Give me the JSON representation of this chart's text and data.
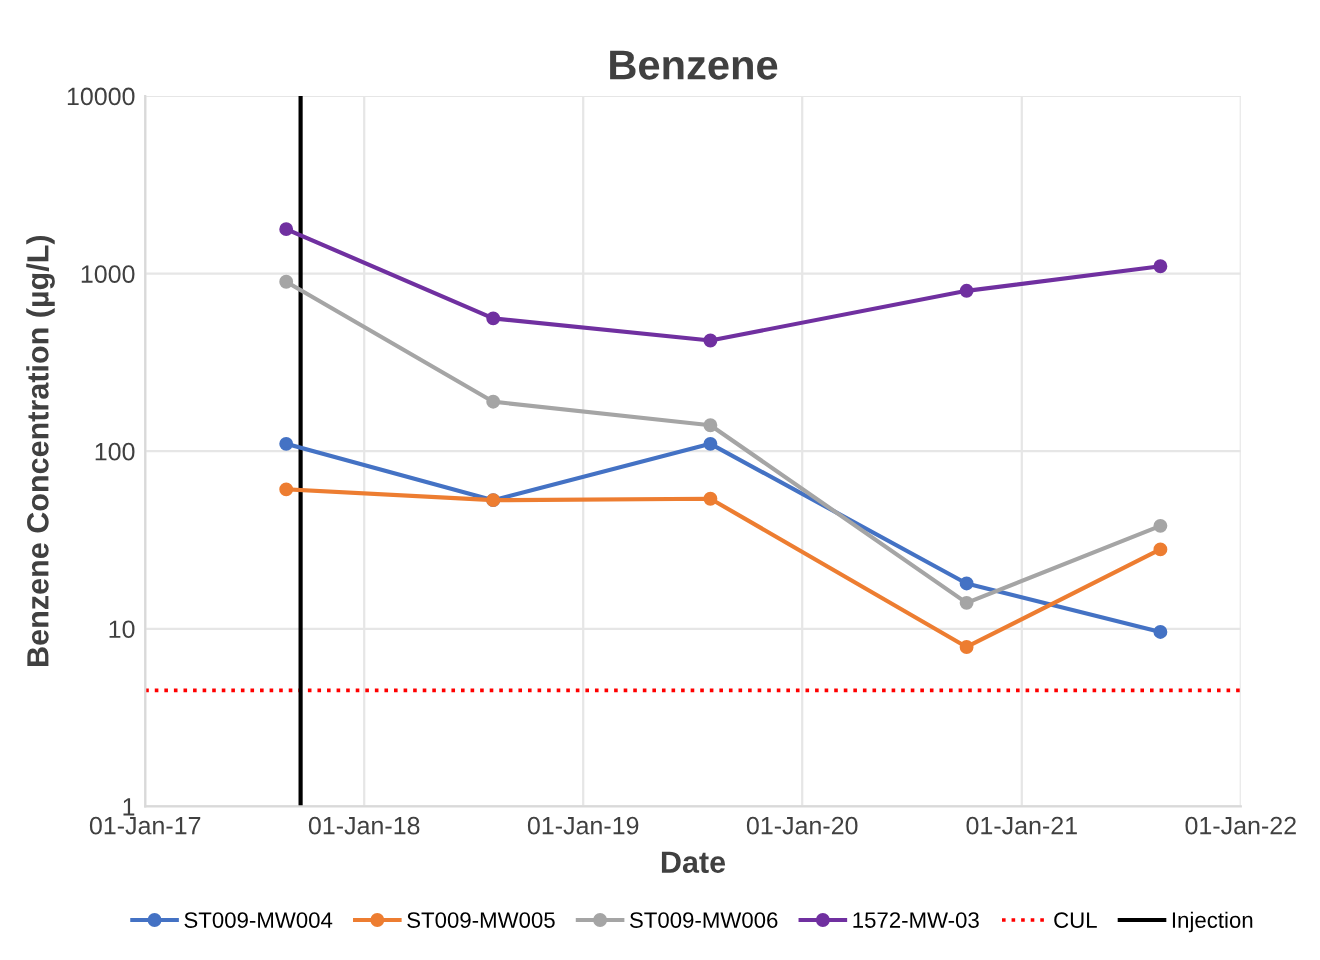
{
  "chart_data": {
    "type": "line",
    "title": "Benzene",
    "xlabel": "Date",
    "ylabel": "Benzene Concentration (µg/L)",
    "x": [
      "2017-08-24",
      "2018-08-04",
      "2019-08-01",
      "2020-10-01",
      "2021-08-20"
    ],
    "series": [
      {
        "name": "ST009-MW004",
        "color": "#4472c4",
        "values": [
          110,
          53,
          110,
          18,
          9.6
        ]
      },
      {
        "name": "ST009-MW005",
        "color": "#ed7d31",
        "values": [
          61,
          53,
          54,
          7.9,
          28
        ]
      },
      {
        "name": "ST009-MW006",
        "color": "#a5a5a5",
        "values": [
          900,
          190,
          140,
          14,
          38
        ]
      },
      {
        "name": "1572-MW-03",
        "color": "#7030a0",
        "values": [
          1780,
          560,
          420,
          800,
          1100
        ]
      }
    ],
    "ref_lines": [
      {
        "axis": "y",
        "value": 4.5,
        "label": "CUL",
        "color": "#ff0000",
        "line_style": "dotted"
      },
      {
        "axis": "x",
        "value": "2017-09-17",
        "label": "Injection",
        "color": "#000000",
        "line_style": "solid"
      }
    ],
    "log": "y",
    "ylim": [
      1,
      10000
    ],
    "yticks": [
      1,
      10,
      100,
      1000,
      10000
    ],
    "xlim": [
      "2017-01-01",
      "2022-01-01"
    ],
    "xticks": [
      {
        "value": "2017-01-01",
        "label": "01-Jan-17"
      },
      {
        "value": "2018-01-01",
        "label": "01-Jan-18"
      },
      {
        "value": "2019-01-01",
        "label": "01-Jan-19"
      },
      {
        "value": "2020-01-01",
        "label": "01-Jan-20"
      },
      {
        "value": "2021-01-01",
        "label": "01-Jan-21"
      },
      {
        "value": "2022-01-01",
        "label": "01-Jan-22"
      }
    ],
    "grid": true,
    "legend": "bottom",
    "marker": "circle",
    "line_style": "solid"
  }
}
